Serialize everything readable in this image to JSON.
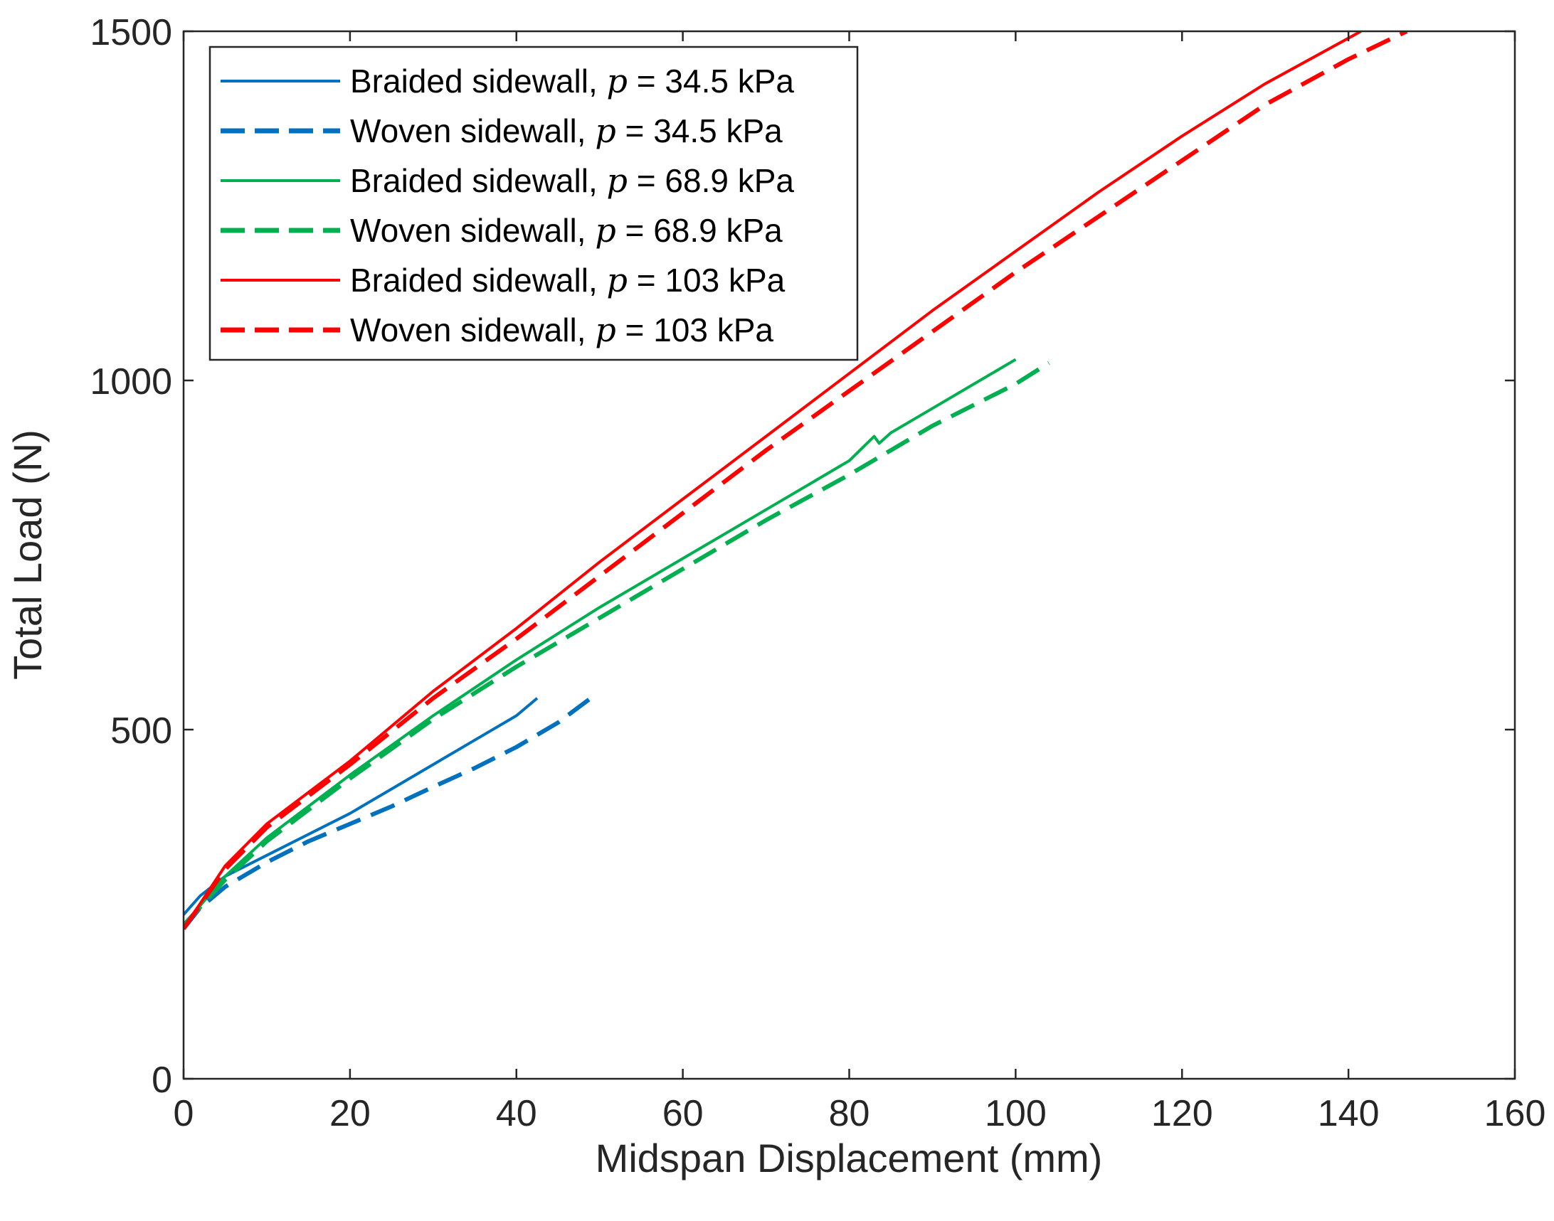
{
  "chart_data": {
    "type": "line",
    "title": "",
    "xlabel": "Midspan  Displacement  (mm)",
    "ylabel": "Total Load (N)",
    "xlim": [
      0,
      160
    ],
    "ylim": [
      0,
      1500
    ],
    "xticks": [
      "0",
      "20",
      "40",
      "60",
      "80",
      "100",
      "120",
      "140",
      "160"
    ],
    "yticks": [
      "0",
      "500",
      "1000",
      "1500"
    ],
    "legend_position": "top-left",
    "series": [
      {
        "name": "Braided sidewall, p = 34.5 kPa",
        "legend_prefix": "Braided sidewall, ",
        "legend_var": "p",
        "legend_suffix": " = 34.5 kPa",
        "color": "#0072BD",
        "style": "solid",
        "x": [
          0,
          2,
          5,
          10,
          15,
          20,
          25,
          30,
          35,
          40,
          42.5
        ],
        "y": [
          235,
          262,
          290,
          320,
          350,
          380,
          415,
          450,
          485,
          520,
          545
        ]
      },
      {
        "name": "Woven sidewall, p = 34.5 kPa",
        "legend_prefix": "Woven sidewall, ",
        "legend_var": "p",
        "legend_suffix": " = 34.5 kPa",
        "color": "#0072BD",
        "style": "dashed",
        "x": [
          0,
          2,
          5,
          10,
          15,
          20,
          25,
          30,
          35,
          40,
          45,
          49.5
        ],
        "y": [
          215,
          245,
          275,
          310,
          340,
          365,
          390,
          418,
          445,
          475,
          510,
          550
        ]
      },
      {
        "name": "Braided sidewall, p = 68.9 kPa",
        "legend_prefix": "Braided sidewall, ",
        "legend_var": "p",
        "legend_suffix": " = 68.9 kPa",
        "color": "#00B050",
        "style": "solid",
        "x": [
          0,
          5,
          10,
          15,
          20,
          30,
          40,
          50,
          60,
          70,
          80,
          83,
          83.6,
          85,
          90,
          95,
          100
        ],
        "y": [
          220,
          290,
          345,
          390,
          435,
          520,
          600,
          675,
          745,
          815,
          885,
          920,
          910,
          925,
          960,
          995,
          1030
        ]
      },
      {
        "name": "Woven sidewall, p = 68.9 kPa",
        "legend_prefix": "Woven sidewall, ",
        "legend_var": "p",
        "legend_suffix": " = 68.9 kPa",
        "color": "#00B050",
        "style": "dashed",
        "x": [
          0,
          5,
          10,
          15,
          20,
          30,
          40,
          50,
          60,
          70,
          80,
          90,
          100,
          104
        ],
        "y": [
          220,
          285,
          340,
          385,
          430,
          515,
          590,
          660,
          730,
          800,
          865,
          935,
          995,
          1025
        ]
      },
      {
        "name": "Braided sidewall, p = 103 kPa",
        "legend_prefix": "Braided sidewall, ",
        "legend_var": "p",
        "legend_suffix": " = 103 kPa",
        "color": "#FF0000",
        "style": "solid",
        "x": [
          0,
          5,
          10,
          15,
          20,
          30,
          40,
          50,
          60,
          70,
          80,
          90,
          100,
          110,
          120,
          130,
          141.5
        ],
        "y": [
          215,
          305,
          365,
          410,
          455,
          555,
          645,
          740,
          830,
          920,
          1010,
          1100,
          1185,
          1270,
          1350,
          1425,
          1500
        ]
      },
      {
        "name": "Woven sidewall, p = 103 kPa",
        "legend_prefix": "Woven sidewall, ",
        "legend_var": "p",
        "legend_suffix": " = 103 kPa",
        "color": "#FF0000",
        "style": "dashed",
        "x": [
          0,
          5,
          10,
          15,
          20,
          30,
          40,
          50,
          60,
          70,
          80,
          90,
          100,
          110,
          120,
          130,
          140,
          147
        ],
        "y": [
          215,
          300,
          360,
          405,
          450,
          545,
          630,
          720,
          810,
          900,
          985,
          1070,
          1155,
          1235,
          1315,
          1395,
          1460,
          1500
        ]
      }
    ]
  }
}
